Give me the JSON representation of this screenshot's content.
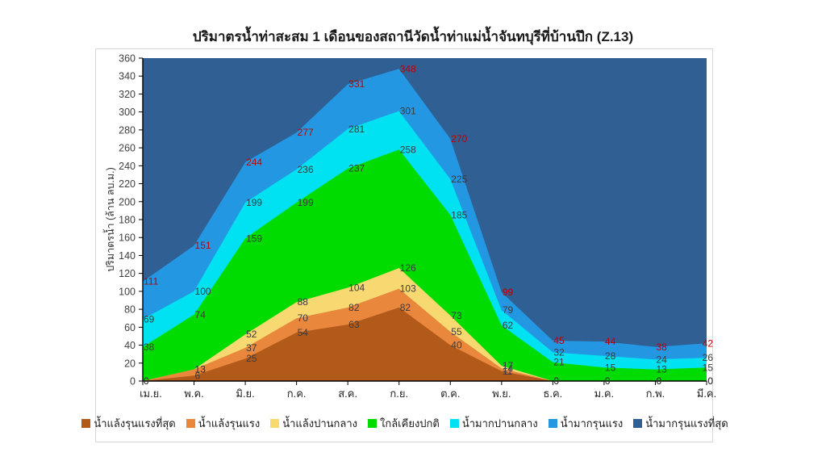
{
  "title": "ปริมาตรน้ำท่าสะสม 1 เดือนของสถานีวัดน้ำท่าแม่น้ำจันทบุรีที่บ้านปึก (Z.13)",
  "y_axis": {
    "label": "ปริมาตรน้ำ (ล้าน ลบ.ม.)",
    "min": 0,
    "max": 360,
    "step": 20
  },
  "colors": {
    "data_label": "#3a3a3a",
    "red_label": "#c00000",
    "axis_line": "#000000",
    "tick_label": "#404040",
    "frame_border": "#d7d7d7"
  },
  "chart_data": {
    "type": "area",
    "title": "ปริมาตรน้ำท่าสะสม 1 เดือนของสถานีวัดน้ำท่าแม่น้ำจันทบุรีที่บ้านปึก (Z.13)",
    "ylabel": "ปริมาตรน้ำ (ล้าน ลบ.ม.)",
    "ylim": [
      0,
      360
    ],
    "grid": false,
    "legend_position": "bottom",
    "categories": [
      "เม.ย.",
      "พ.ค.",
      "มิ.ย.",
      "ก.ค.",
      "ส.ค.",
      "ก.ย.",
      "ต.ค.",
      "พ.ย.",
      "ธ.ค.",
      "ม.ค.",
      "ก.พ.",
      "มี.ค."
    ],
    "series": [
      {
        "name": "น้ำแล้งรุนแรงที่สุด",
        "color": "#b25a1a",
        "values": [
          0,
          6,
          25,
          54,
          63,
          82,
          40,
          11,
          0,
          0,
          0,
          0
        ]
      },
      {
        "name": "น้ำแล้งรุนแรง",
        "color": "#e9873d",
        "values": [
          0,
          13,
          37,
          70,
          82,
          103,
          55,
          14,
          0,
          0,
          0,
          0
        ]
      },
      {
        "name": "น้ำแล้งปานกลาง",
        "color": "#f8d971",
        "values": [
          0,
          13,
          52,
          88,
          104,
          126,
          73,
          17,
          0,
          0,
          0,
          0
        ]
      },
      {
        "name": "ใกล้เคียงปกติ",
        "color": "#00db00",
        "values": [
          38,
          74,
          159,
          199,
          237,
          258,
          185,
          62,
          21,
          15,
          13,
          15
        ]
      },
      {
        "name": "น้ำมากปานกลาง",
        "color": "#00e1f2",
        "values": [
          69,
          100,
          199,
          236,
          281,
          301,
          225,
          79,
          32,
          28,
          24,
          26
        ]
      },
      {
        "name": "น้ำมากรุนแรง",
        "color": "#2497e3",
        "label_color": "#c00000",
        "values": [
          111,
          151,
          244,
          277,
          331,
          348,
          270,
          99,
          45,
          44,
          38,
          42
        ]
      },
      {
        "name": "น้ำมากรุนแรงที่สุด",
        "color": "#2f5f93",
        "fill_to_top": true
      }
    ]
  }
}
